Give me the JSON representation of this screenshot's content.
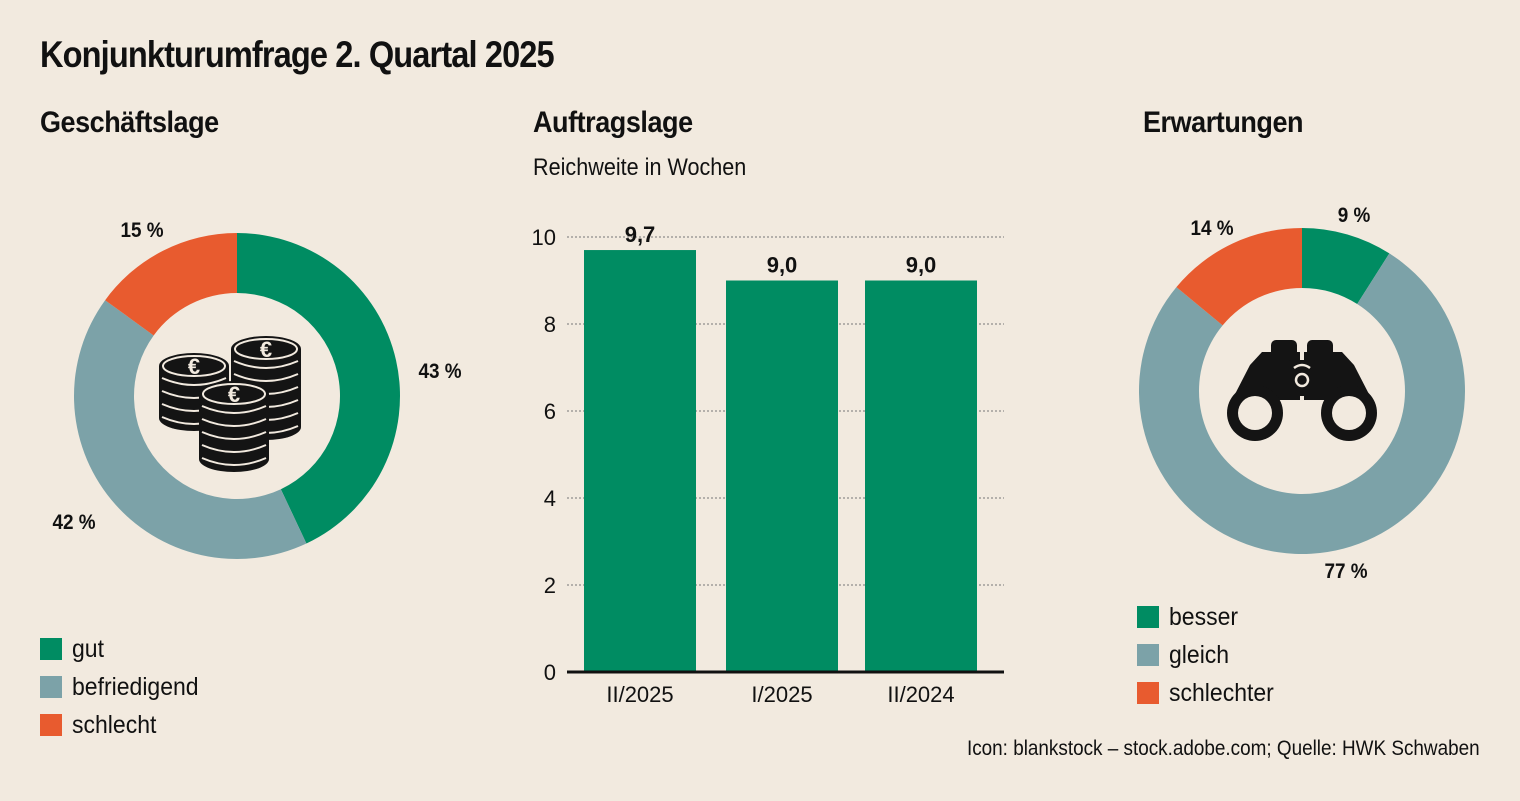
{
  "title": "Konjunkturumfrage 2. Quartal 2025",
  "source": "Icon: blankstock – stock.adobe.com; Quelle: HWK Schwaben",
  "colors": {
    "green": "#008c62",
    "blue_gray": "#7ca2a8",
    "orange": "#e85b2f",
    "background": "#f2eadf",
    "icon": "#141414"
  },
  "chart_data": [
    {
      "type": "pie",
      "title": "Geschäftslage",
      "icon": "euro-coins-icon",
      "slices": [
        {
          "name": "gut",
          "value": 43,
          "label": "43 %",
          "color": "#008c62"
        },
        {
          "name": "befriedigend",
          "value": 42,
          "label": "42 %",
          "color": "#7ca2a8"
        },
        {
          "name": "schlecht",
          "value": 15,
          "label": "15 %",
          "color": "#e85b2f"
        }
      ],
      "legend": "bottom-left"
    },
    {
      "type": "bar",
      "title": "Auftragslage",
      "subtitle": "Reichweite in Wochen",
      "categories": [
        "II/2025",
        "I/2025",
        "II/2024"
      ],
      "values": [
        9.7,
        9.0,
        9.0
      ],
      "value_labels": [
        "9,7",
        "9,0",
        "9,0"
      ],
      "ylim": [
        0,
        10
      ],
      "yticks": [
        "0",
        "2",
        "4",
        "6",
        "8",
        "10"
      ],
      "grid": true,
      "color": "#008c62"
    },
    {
      "type": "pie",
      "title": "Erwartungen",
      "icon": "binoculars-icon",
      "slices": [
        {
          "name": "besser",
          "value": 9,
          "label": "9 %",
          "color": "#008c62"
        },
        {
          "name": "gleich",
          "value": 77,
          "label": "77 %",
          "color": "#7ca2a8"
        },
        {
          "name": "schlechter",
          "value": 14,
          "label": "14 %",
          "color": "#e85b2f"
        }
      ],
      "legend": "bottom-left"
    }
  ]
}
